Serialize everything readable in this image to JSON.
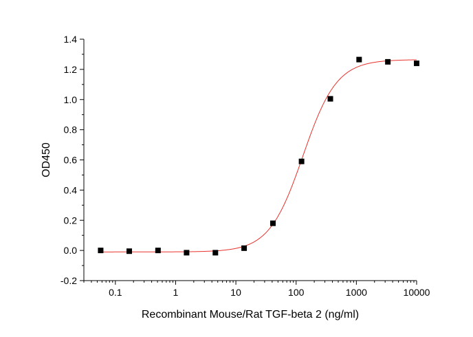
{
  "chart_data": {
    "type": "scatter",
    "title": "",
    "xlabel": "Recombinant Mouse/Rat TGF-beta 2 (ng/ml)",
    "ylabel": "OD450",
    "x_scale": "log",
    "xlim": [
      0.03,
      10000
    ],
    "ylim": [
      -0.2,
      1.4
    ],
    "x_ticks": [
      0.1,
      1,
      10,
      100,
      1000,
      10000
    ],
    "x_tick_labels": [
      "0.1",
      "1",
      "10",
      "100",
      "1000",
      "10000"
    ],
    "y_ticks": [
      -0.2,
      0.0,
      0.2,
      0.4,
      0.6,
      0.8,
      1.0,
      1.2,
      1.4
    ],
    "y_tick_labels": [
      "-0.2",
      "0.0",
      "0.2",
      "0.4",
      "0.6",
      "0.8",
      "1.0",
      "1.2",
      "1.4"
    ],
    "grid": false,
    "legend": "none",
    "series": [
      {
        "type": "scatter",
        "marker": "square",
        "color": "#000000",
        "points": [
          {
            "x": 0.057,
            "y": 0.0
          },
          {
            "x": 0.17,
            "y": -0.005
          },
          {
            "x": 0.51,
            "y": 0.0
          },
          {
            "x": 1.52,
            "y": -0.015
          },
          {
            "x": 4.57,
            "y": -0.015
          },
          {
            "x": 13.7,
            "y": 0.015
          },
          {
            "x": 41.2,
            "y": 0.18
          },
          {
            "x": 123,
            "y": 0.59
          },
          {
            "x": 370,
            "y": 1.005
          },
          {
            "x": 1110,
            "y": 1.265
          },
          {
            "x": 3330,
            "y": 1.25
          },
          {
            "x": 10000,
            "y": 1.24
          }
        ]
      },
      {
        "type": "line",
        "fit": "4PL",
        "color": "#e8302a",
        "params": {
          "bottom": -0.01,
          "top": 1.265,
          "ec50": 130,
          "hill": 1.55
        }
      }
    ]
  }
}
